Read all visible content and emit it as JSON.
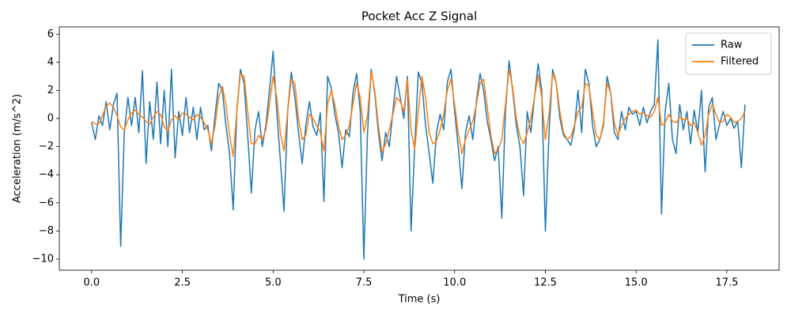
{
  "chart_data": {
    "type": "line",
    "title": "Pocket Acc Z Signal",
    "x_label": "Time (s)",
    "y_label": "Acceleration (m/s^2)",
    "x": [
      0,
      0.1,
      0.2,
      0.3,
      0.4,
      0.5,
      0.6,
      0.7,
      0.8,
      0.9,
      1,
      1.1,
      1.2,
      1.3,
      1.4,
      1.5,
      1.6,
      1.7,
      1.8,
      1.9,
      2,
      2.1,
      2.2,
      2.3,
      2.4,
      2.5,
      2.6,
      2.7,
      2.8,
      2.9,
      3,
      3.1,
      3.2,
      3.3,
      3.4,
      3.5,
      3.6,
      3.7,
      3.8,
      3.9,
      4,
      4.1,
      4.2,
      4.3,
      4.4,
      4.5,
      4.6,
      4.7,
      4.8,
      4.9,
      5,
      5.1,
      5.2,
      5.3,
      5.4,
      5.5,
      5.6,
      5.7,
      5.8,
      5.9,
      6,
      6.1,
      6.2,
      6.3,
      6.4,
      6.5,
      6.6,
      6.7,
      6.8,
      6.9,
      7,
      7.1,
      7.2,
      7.3,
      7.4,
      7.5,
      7.6,
      7.7,
      7.8,
      7.9,
      8,
      8.1,
      8.2,
      8.3,
      8.4,
      8.5,
      8.6,
      8.7,
      8.8,
      8.9,
      9,
      9.1,
      9.2,
      9.3,
      9.4,
      9.5,
      9.6,
      9.7,
      9.8,
      9.9,
      10,
      10.1,
      10.2,
      10.3,
      10.4,
      10.5,
      10.6,
      10.7,
      10.8,
      10.9,
      11,
      11.1,
      11.2,
      11.3,
      11.4,
      11.5,
      11.6,
      11.7,
      11.8,
      11.9,
      12,
      12.1,
      12.2,
      12.3,
      12.4,
      12.5,
      12.6,
      12.7,
      12.8,
      12.9,
      13,
      13.1,
      13.2,
      13.3,
      13.4,
      13.5,
      13.6,
      13.7,
      13.8,
      13.9,
      14,
      14.1,
      14.2,
      14.3,
      14.4,
      14.5,
      14.6,
      14.7,
      14.8,
      14.9,
      15,
      15.1,
      15.2,
      15.3,
      15.4,
      15.5,
      15.6,
      15.7,
      15.8,
      15.9,
      16,
      16.1,
      16.2,
      16.3,
      16.4,
      16.5,
      16.6,
      16.7,
      16.8,
      16.9,
      17,
      17.1,
      17.2,
      17.3,
      17.4,
      17.5,
      17.6,
      17.7,
      17.8,
      17.9,
      18
    ],
    "series": [
      {
        "name": "Raw",
        "color": "#1f77b4",
        "values": [
          -0.3,
          -1.5,
          0.2,
          -0.5,
          1.2,
          -0.8,
          1.0,
          1.8,
          -9.1,
          -1.0,
          1.5,
          -0.5,
          1.5,
          -1.0,
          3.4,
          -3.2,
          1.2,
          -1.5,
          2.6,
          -1.8,
          2.0,
          -2.0,
          3.5,
          -2.8,
          0.5,
          -1.2,
          1.5,
          -1.0,
          0.8,
          -1.5,
          0.8,
          -0.8,
          -0.5,
          -2.3,
          0.2,
          2.5,
          2.0,
          -0.5,
          -2.5,
          -6.5,
          0.5,
          3.5,
          2.5,
          -1.2,
          -5.3,
          -0.8,
          0.5,
          -2.0,
          -0.5,
          2.0,
          4.8,
          0.5,
          -3.0,
          -6.6,
          0.5,
          3.3,
          1.5,
          -1.0,
          -3.2,
          -0.5,
          1.2,
          -0.6,
          -1.2,
          0.4,
          -5.9,
          3.0,
          2.2,
          0.3,
          -1.0,
          -3.5,
          -0.8,
          -1.3,
          1.8,
          3.2,
          0.5,
          -10.0,
          -1.0,
          3.5,
          1.8,
          -1.0,
          -3.0,
          -1.0,
          -2.0,
          0.5,
          3.0,
          1.5,
          0.0,
          3.0,
          -8.0,
          -2.0,
          3.3,
          2.5,
          -0.5,
          -2.5,
          -4.6,
          -1.0,
          0.3,
          -0.8,
          2.6,
          3.5,
          0.5,
          -2.0,
          -5.0,
          -1.0,
          0.2,
          -1.5,
          1.2,
          3.2,
          2.0,
          -0.2,
          -1.5,
          -3.0,
          -2.0,
          -7.1,
          0.5,
          4.1,
          2.0,
          -0.5,
          -2.0,
          -5.5,
          0.5,
          -1.0,
          1.5,
          3.9,
          2.0,
          -8.0,
          -1.0,
          3.5,
          2.5,
          0.0,
          -1.2,
          -1.5,
          -1.9,
          -0.7,
          2.0,
          -1.0,
          3.5,
          2.5,
          -0.5,
          -2.0,
          -1.5,
          -0.5,
          3.0,
          1.8,
          -1.0,
          -1.5,
          0.5,
          -0.8,
          0.8,
          0.3,
          0.5,
          -0.5,
          0.8,
          -0.3,
          0.5,
          1.0,
          5.6,
          -6.8,
          0.5,
          2.5,
          -1.5,
          -2.5,
          1.0,
          -0.8,
          0.5,
          -1.8,
          0.6,
          -1.0,
          2.0,
          -3.8,
          0.8,
          1.5,
          -1.5,
          -0.4,
          0.5,
          -0.5,
          0.0,
          -0.7,
          -0.2,
          -3.5,
          1.0
        ]
      },
      {
        "name": "Filtered",
        "color": "#ff7f0e",
        "values": [
          -0.2,
          -0.4,
          -0.4,
          0.2,
          0.9,
          1.1,
          0.8,
          0.2,
          -0.6,
          -0.8,
          -0.1,
          0.4,
          0.6,
          0.3,
          0.1,
          -0.2,
          -0.4,
          0.1,
          0.5,
          0.3,
          -0.6,
          -0.9,
          -0.1,
          0.2,
          -0.1,
          0.4,
          0.3,
          0.1,
          -0.1,
          0.3,
          0.1,
          -0.3,
          -0.8,
          -1.8,
          -0.5,
          1.5,
          2.3,
          1.0,
          -1.2,
          -2.7,
          0.5,
          3.2,
          3.0,
          0.5,
          -1.8,
          -1.8,
          -1.2,
          -1.5,
          -0.8,
          1.0,
          3.0,
          1.5,
          -1.0,
          -2.3,
          0.5,
          2.8,
          2.5,
          0.0,
          -1.5,
          -1.2,
          0.3,
          0.0,
          -0.5,
          -1.0,
          -2.3,
          1.0,
          2.0,
          1.0,
          -0.5,
          -1.5,
          -1.2,
          -0.5,
          1.0,
          2.5,
          1.5,
          -1.0,
          0.2,
          3.3,
          2.0,
          -0.5,
          -2.4,
          -1.8,
          -0.8,
          0.3,
          1.5,
          1.2,
          0.5,
          2.8,
          -0.8,
          -2.2,
          0.5,
          3.0,
          1.5,
          -1.0,
          -1.8,
          -1.6,
          -0.8,
          0.3,
          2.0,
          2.8,
          1.0,
          -1.0,
          -2.5,
          -1.5,
          -0.8,
          -0.2,
          1.0,
          2.5,
          2.8,
          0.8,
          -1.2,
          -2.5,
          -2.2,
          -1.5,
          1.0,
          3.5,
          2.2,
          0.0,
          -1.3,
          -1.8,
          -1.0,
          0.0,
          1.5,
          3.1,
          1.5,
          -1.5,
          0.3,
          3.2,
          2.5,
          0.5,
          -1.0,
          -1.5,
          -1.3,
          -0.5,
          0.5,
          0.8,
          2.5,
          2.3,
          0.5,
          -1.2,
          -1.5,
          -0.3,
          2.5,
          1.8,
          -0.3,
          -1.2,
          -0.5,
          0.0,
          0.3,
          0.5,
          0.6,
          0.3,
          0.4,
          0.2,
          0.1,
          0.5,
          1.5,
          -0.5,
          -0.3,
          0.3,
          -0.2,
          -0.3,
          0.1,
          -0.1,
          0.0,
          -0.5,
          -0.3,
          -1.0,
          -1.9,
          -1.2,
          0.3,
          1.0,
          0.3,
          -0.3,
          -0.2,
          0.3,
          0.1,
          -0.3,
          -0.2,
          0.0,
          0.5
        ]
      }
    ],
    "xlim": [
      -0.89,
      18.94
    ],
    "ylim": [
      -10.79,
      6.52
    ],
    "xticks": [
      {
        "value": 0,
        "label": "0.0"
      },
      2.5,
      {
        "value": 5,
        "label": "5.0"
      },
      7.5,
      {
        "value": 10,
        "label": "10.0"
      },
      12.5,
      {
        "value": 15,
        "label": "15.0"
      },
      17.5
    ],
    "yticks": [
      {
        "value": -10,
        "label": "−10"
      },
      {
        "value": -8,
        "label": "−8"
      },
      {
        "value": -6,
        "label": "−6"
      },
      {
        "value": -4,
        "label": "−4"
      },
      {
        "value": -2,
        "label": "−2"
      },
      0,
      2,
      4,
      6
    ],
    "legend": "upper right",
    "grid": false
  }
}
